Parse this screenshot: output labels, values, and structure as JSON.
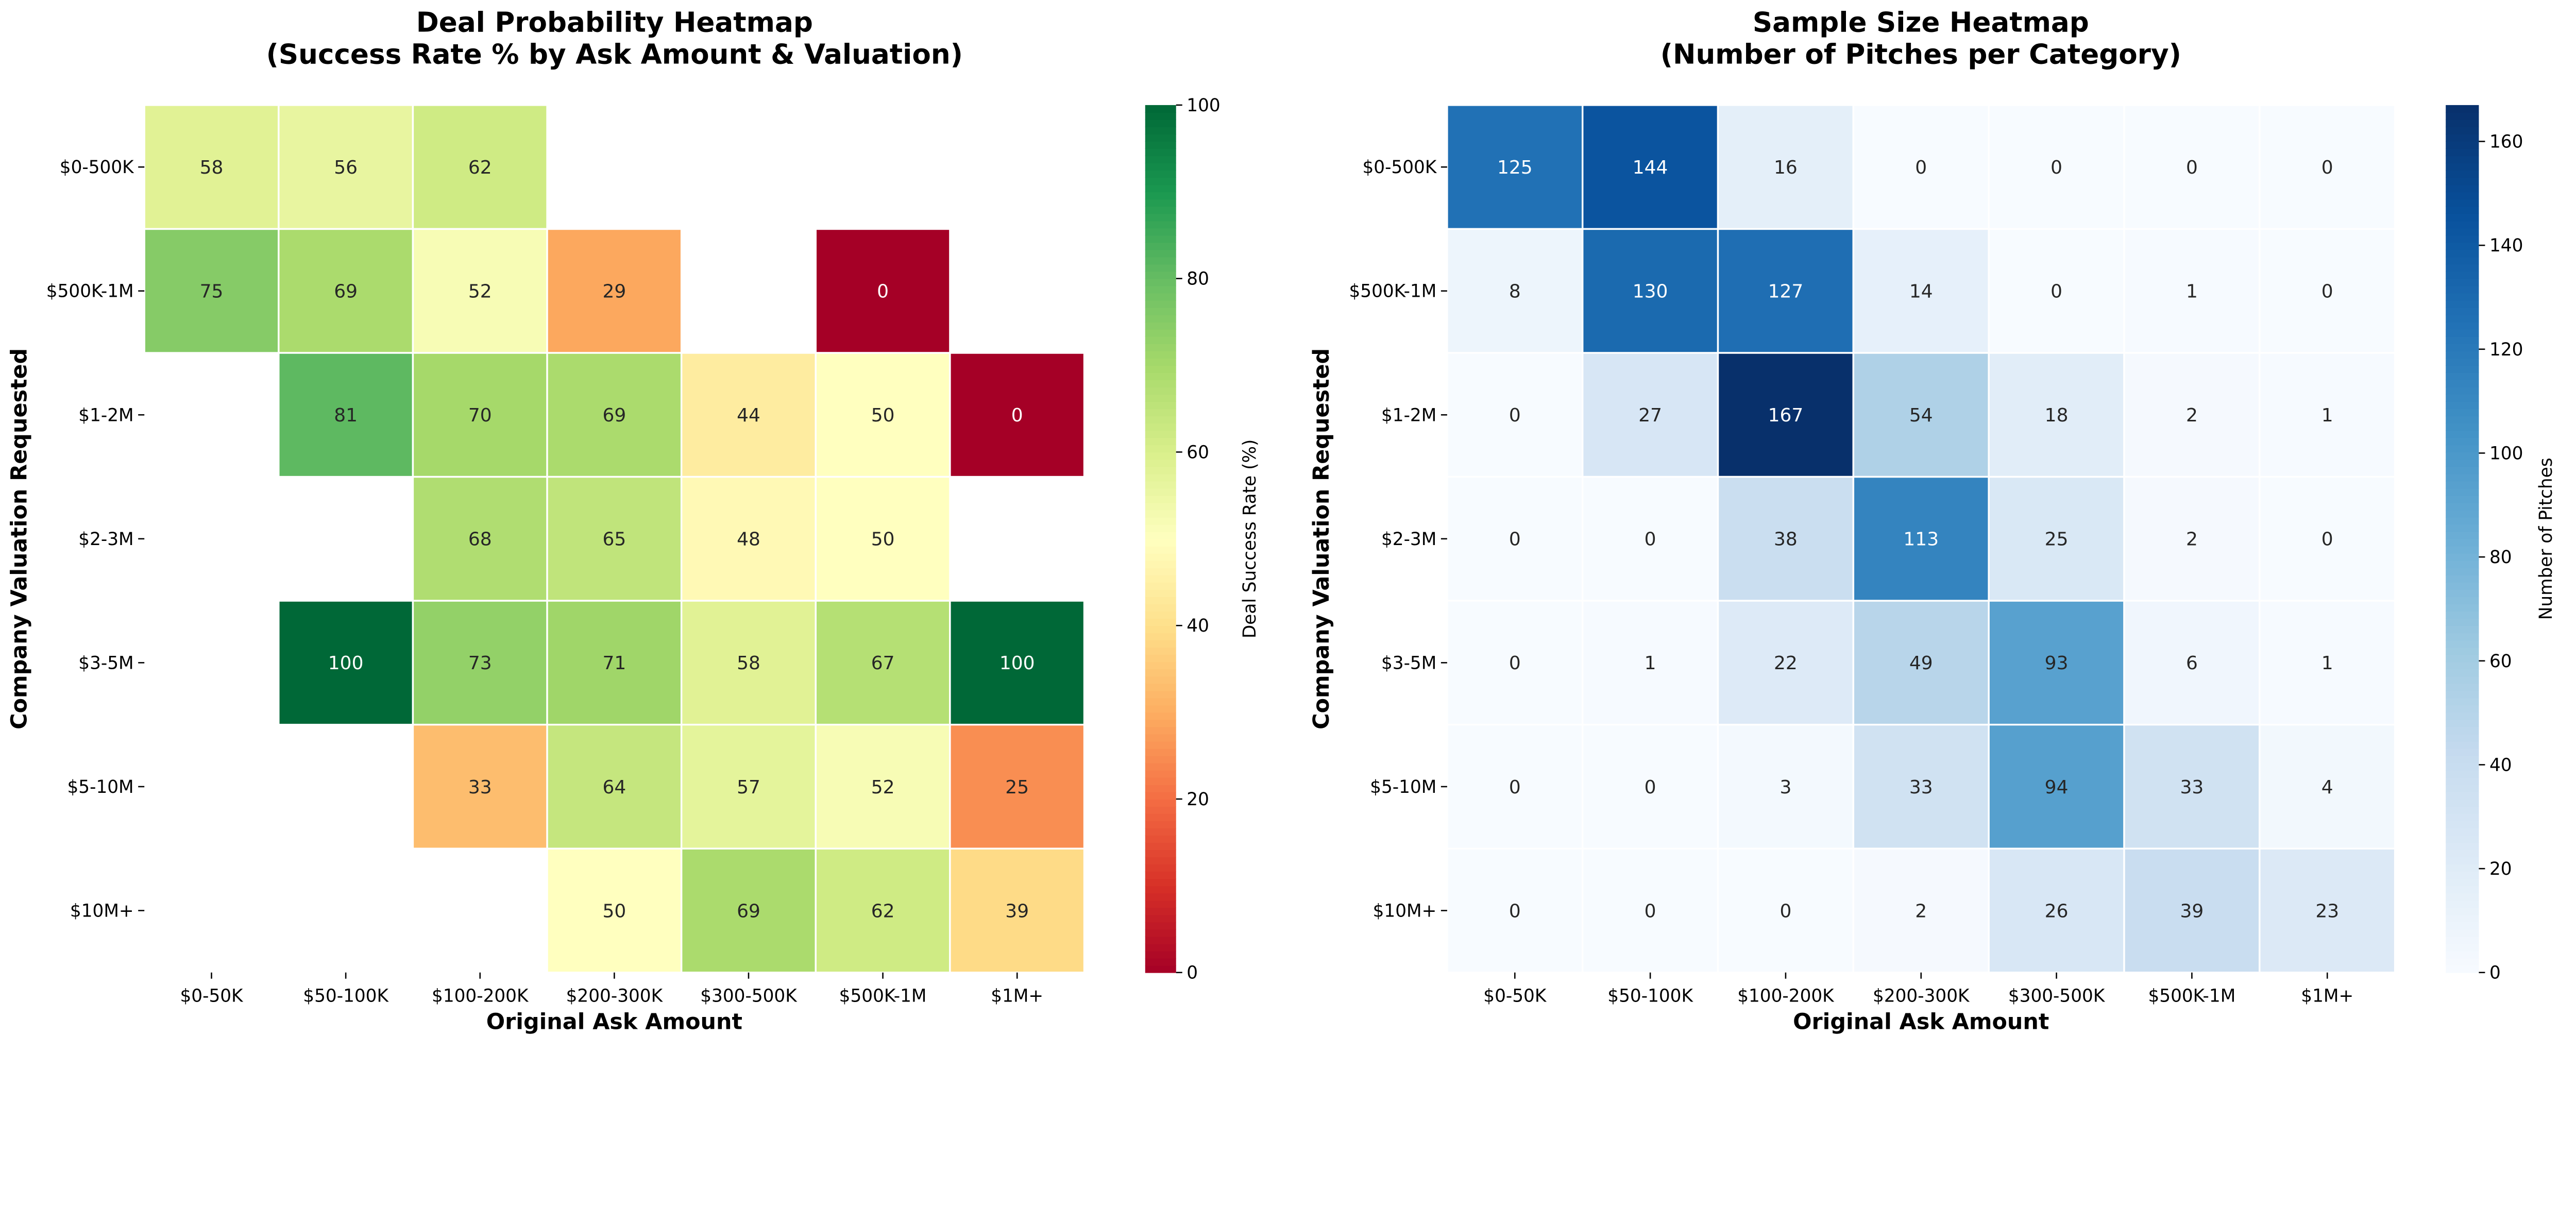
{
  "chart_data": [
    {
      "type": "heatmap",
      "title": "Deal Probability Heatmap\n(Success Rate % by Ask Amount & Valuation)",
      "xlabel": "Original Ask Amount",
      "ylabel": "Company Valuation Requested",
      "x_categories": [
        "$0-50K",
        "$50-100K",
        "$100-200K",
        "$200-300K",
        "$300-500K",
        "$500K-1M",
        "$1M+"
      ],
      "y_categories": [
        "$0-500K",
        "$500K-1M",
        "$1-2M",
        "$2-3M",
        "$3-5M",
        "$5-10M",
        "$10M+"
      ],
      "values": [
        [
          58,
          56,
          62,
          null,
          null,
          null,
          null
        ],
        [
          75,
          69,
          52,
          29,
          null,
          0,
          null
        ],
        [
          null,
          81,
          70,
          69,
          44,
          50,
          0
        ],
        [
          null,
          null,
          68,
          65,
          48,
          50,
          null
        ],
        [
          null,
          100,
          73,
          71,
          58,
          67,
          100
        ],
        [
          null,
          null,
          33,
          64,
          57,
          52,
          25
        ],
        [
          null,
          null,
          null,
          50,
          69,
          62,
          39
        ]
      ],
      "colormap": "RdYlGn",
      "colorbar": {
        "label": "Deal Success Rate (%)",
        "range": [
          0,
          100
        ],
        "ticks": [
          0,
          20,
          40,
          60,
          80,
          100
        ]
      }
    },
    {
      "type": "heatmap",
      "title": "Sample Size Heatmap\n(Number of Pitches per Category)",
      "xlabel": "Original Ask Amount",
      "ylabel": "Company Valuation Requested",
      "x_categories": [
        "$0-50K",
        "$50-100K",
        "$100-200K",
        "$200-300K",
        "$300-500K",
        "$500K-1M",
        "$1M+"
      ],
      "y_categories": [
        "$0-500K",
        "$500K-1M",
        "$1-2M",
        "$2-3M",
        "$3-5M",
        "$5-10M",
        "$10M+"
      ],
      "values": [
        [
          125,
          144,
          16,
          0,
          0,
          0,
          0
        ],
        [
          8,
          130,
          127,
          14,
          0,
          1,
          0
        ],
        [
          0,
          27,
          167,
          54,
          18,
          2,
          1
        ],
        [
          0,
          0,
          38,
          113,
          25,
          2,
          0
        ],
        [
          0,
          1,
          22,
          49,
          93,
          6,
          1
        ],
        [
          0,
          0,
          3,
          33,
          94,
          33,
          4
        ],
        [
          0,
          0,
          0,
          2,
          26,
          39,
          23
        ]
      ],
      "colormap": "Blues",
      "colorbar": {
        "label": "Number of Pitches",
        "range": [
          0,
          167
        ],
        "ticks": [
          0,
          20,
          40,
          60,
          80,
          100,
          120,
          140,
          160
        ]
      }
    }
  ]
}
